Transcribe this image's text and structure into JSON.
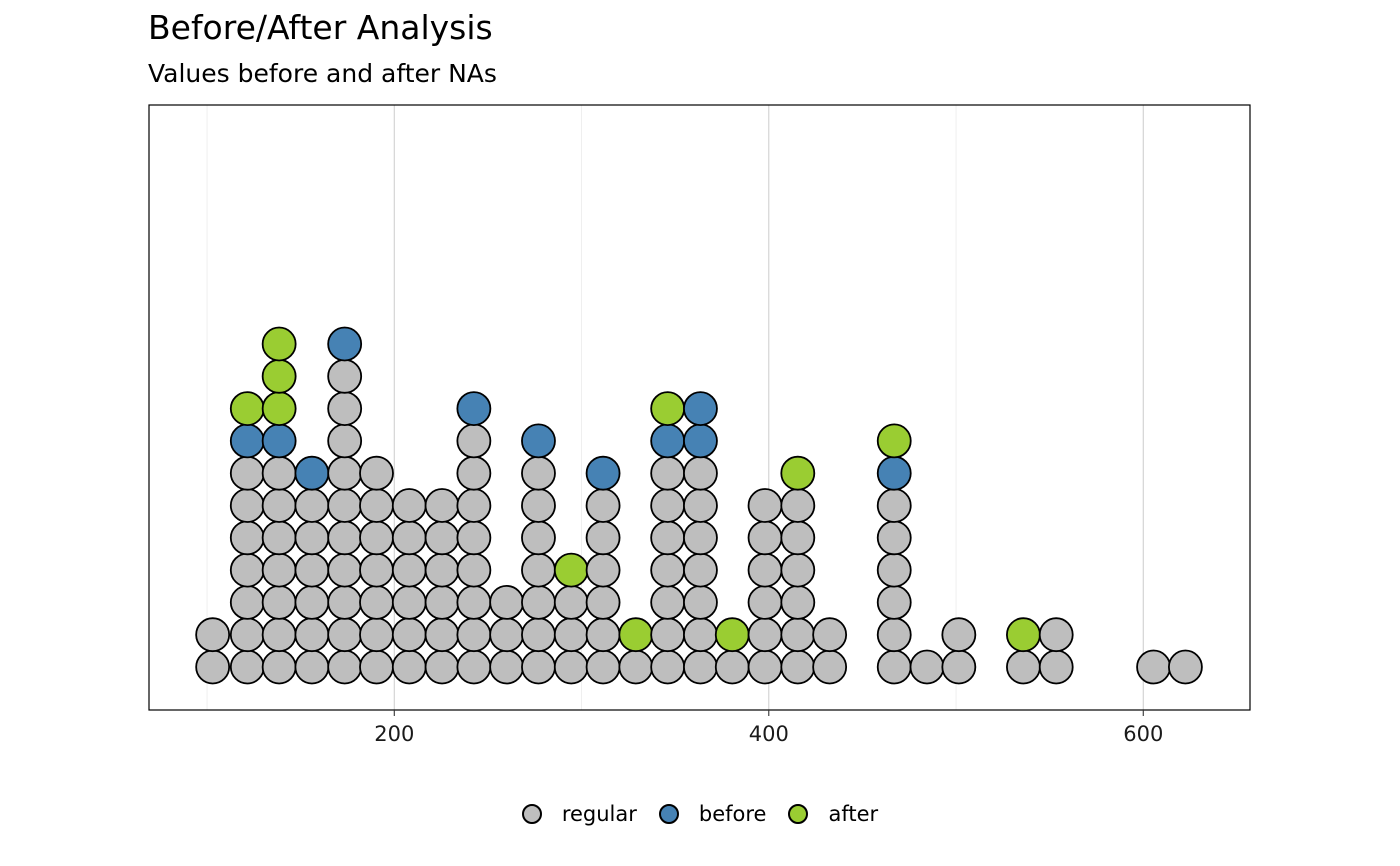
{
  "chart_data": {
    "type": "dotplot",
    "title": "Before/After Analysis",
    "subtitle": "Values before and after NAs",
    "xlabel": "",
    "ylabel": "",
    "xlim": [
      69,
      657
    ],
    "x_ticks": [
      200,
      400,
      600
    ],
    "grid": {
      "vertical_major": true,
      "vertical_minor": true,
      "horizontal": false
    },
    "legend_position": "bottom",
    "colors": {
      "regular": "#bebebe",
      "before": "#4682b4",
      "after": "#9acd32",
      "outline": "#000000"
    },
    "series": [
      {
        "name": "regular"
      },
      {
        "name": "before"
      },
      {
        "name": "after"
      }
    ],
    "stacks": [
      {
        "x": 103.0,
        "points": [
          "regular",
          "regular"
        ]
      },
      {
        "x": 121.5,
        "points": [
          "regular",
          "regular",
          "regular",
          "regular",
          "regular",
          "regular",
          "regular",
          "before",
          "after"
        ]
      },
      {
        "x": 138.5,
        "points": [
          "regular",
          "regular",
          "regular",
          "regular",
          "regular",
          "regular",
          "regular",
          "before",
          "after",
          "after",
          "after"
        ]
      },
      {
        "x": 156.0,
        "points": [
          "regular",
          "regular",
          "regular",
          "regular",
          "regular",
          "regular",
          "before"
        ]
      },
      {
        "x": 173.5,
        "points": [
          "regular",
          "regular",
          "regular",
          "regular",
          "regular",
          "regular",
          "regular",
          "regular",
          "regular",
          "regular",
          "before"
        ]
      },
      {
        "x": 190.5,
        "points": [
          "regular",
          "regular",
          "regular",
          "regular",
          "regular",
          "regular",
          "regular"
        ]
      },
      {
        "x": 208.0,
        "points": [
          "regular",
          "regular",
          "regular",
          "regular",
          "regular",
          "regular"
        ]
      },
      {
        "x": 225.5,
        "points": [
          "regular",
          "regular",
          "regular",
          "regular",
          "regular",
          "regular"
        ]
      },
      {
        "x": 242.5,
        "points": [
          "regular",
          "regular",
          "regular",
          "regular",
          "regular",
          "regular",
          "regular",
          "regular",
          "before"
        ]
      },
      {
        "x": 260.0,
        "points": [
          "regular",
          "regular",
          "regular"
        ]
      },
      {
        "x": 277.0,
        "points": [
          "regular",
          "regular",
          "regular",
          "regular",
          "regular",
          "regular",
          "regular",
          "before"
        ]
      },
      {
        "x": 294.5,
        "points": [
          "regular",
          "regular",
          "regular",
          "after"
        ]
      },
      {
        "x": 311.5,
        "points": [
          "regular",
          "regular",
          "regular",
          "regular",
          "regular",
          "regular",
          "before"
        ]
      },
      {
        "x": 329.0,
        "points": [
          "regular",
          "after"
        ]
      },
      {
        "x": 346.0,
        "points": [
          "regular",
          "regular",
          "regular",
          "regular",
          "regular",
          "regular",
          "regular",
          "before",
          "after"
        ]
      },
      {
        "x": 363.5,
        "points": [
          "regular",
          "regular",
          "regular",
          "regular",
          "regular",
          "regular",
          "regular",
          "before",
          "before"
        ]
      },
      {
        "x": 380.5,
        "points": [
          "regular",
          "after"
        ]
      },
      {
        "x": 398.0,
        "points": [
          "regular",
          "regular",
          "regular",
          "regular",
          "regular",
          "regular"
        ]
      },
      {
        "x": 415.5,
        "points": [
          "regular",
          "regular",
          "regular",
          "regular",
          "regular",
          "regular",
          "after"
        ]
      },
      {
        "x": 432.5,
        "points": [
          "regular",
          "regular"
        ]
      },
      {
        "x": 467.0,
        "points": [
          "regular",
          "regular",
          "regular",
          "regular",
          "regular",
          "regular",
          "before",
          "after"
        ]
      },
      {
        "x": 484.5,
        "points": [
          "regular"
        ]
      },
      {
        "x": 501.5,
        "points": [
          "regular",
          "regular"
        ]
      },
      {
        "x": 536.0,
        "points": [
          "regular",
          "after"
        ]
      },
      {
        "x": 553.5,
        "points": [
          "regular",
          "regular"
        ]
      },
      {
        "x": 605.5,
        "points": [
          "regular"
        ]
      },
      {
        "x": 622.5,
        "points": [
          "regular"
        ]
      }
    ]
  }
}
